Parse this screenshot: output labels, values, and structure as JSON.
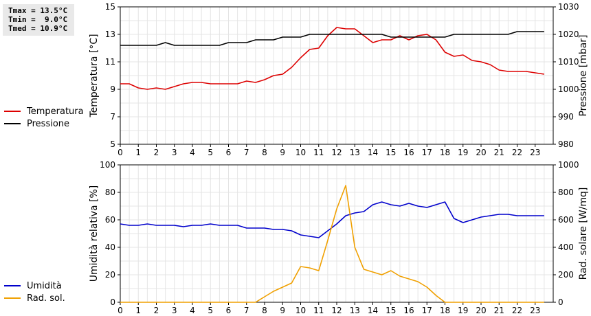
{
  "stats": {
    "tmax": "Tmax = 13.5°C",
    "tmin": "Tmin =  9.0°C",
    "tmed": "Tmed = 10.9°C"
  },
  "chart_data": [
    {
      "type": "line",
      "xlim": [
        0,
        24
      ],
      "xticks": [
        "0",
        "1",
        "2",
        "3",
        "4",
        "5",
        "6",
        "7",
        "8",
        "9",
        "10",
        "11",
        "12",
        "13",
        "14",
        "15",
        "16",
        "17",
        "18",
        "19",
        "20",
        "21",
        "22",
        "23"
      ],
      "ylabel_left": "Temperatura [°C]",
      "ylabel_right": "Pressione [mbar]",
      "ylim_left": [
        5,
        15
      ],
      "ylim_right": [
        980,
        1030
      ],
      "yticks_left": [
        5,
        7,
        9,
        11,
        13,
        15
      ],
      "yticks_right": [
        980,
        990,
        1000,
        1010,
        1020,
        1030
      ],
      "grid": true,
      "legend_position": "left",
      "series": [
        {
          "name": "Temperatura",
          "axis": "left",
          "color": "#dd0000",
          "x": [
            0,
            0.5,
            1,
            1.5,
            2,
            2.5,
            3,
            3.5,
            4,
            4.5,
            5,
            5.5,
            6,
            6.5,
            7,
            7.5,
            8,
            8.5,
            9,
            9.5,
            10,
            10.5,
            11,
            11.5,
            12,
            12.5,
            13,
            13.5,
            14,
            14.5,
            15,
            15.5,
            16,
            16.5,
            17,
            17.5,
            18,
            18.5,
            19,
            19.5,
            20,
            20.5,
            21,
            21.5,
            22,
            22.5,
            23,
            23.5
          ],
          "values": [
            9.4,
            9.4,
            9.1,
            9.0,
            9.1,
            9.0,
            9.2,
            9.4,
            9.5,
            9.5,
            9.4,
            9.4,
            9.4,
            9.4,
            9.6,
            9.5,
            9.7,
            10.0,
            10.1,
            10.6,
            11.3,
            11.9,
            12.0,
            12.9,
            13.5,
            13.4,
            13.4,
            12.9,
            12.4,
            12.6,
            12.6,
            12.9,
            12.6,
            12.9,
            13.0,
            12.6,
            11.7,
            11.4,
            11.5,
            11.1,
            11.0,
            10.8,
            10.4,
            10.3,
            10.3,
            10.3,
            10.2,
            10.1
          ]
        },
        {
          "name": "Pressione",
          "axis": "right",
          "color": "#000000",
          "x": [
            0,
            0.5,
            1,
            1.5,
            2,
            2.5,
            3,
            3.5,
            4,
            4.5,
            5,
            5.5,
            6,
            6.5,
            7,
            7.5,
            8,
            8.5,
            9,
            9.5,
            10,
            10.5,
            11,
            11.5,
            12,
            12.5,
            13,
            13.5,
            14,
            14.5,
            15,
            15.5,
            16,
            16.5,
            17,
            17.5,
            18,
            18.5,
            19,
            19.5,
            20,
            20.5,
            21,
            21.5,
            22,
            22.5,
            23,
            23.5
          ],
          "values": [
            1016,
            1016,
            1016,
            1016,
            1016,
            1017,
            1016,
            1016,
            1016,
            1016,
            1016,
            1016,
            1017,
            1017,
            1017,
            1018,
            1018,
            1018,
            1019,
            1019,
            1019,
            1020,
            1020,
            1020,
            1020,
            1020,
            1020,
            1020,
            1020,
            1020,
            1019,
            1019,
            1019,
            1019,
            1019,
            1019,
            1019,
            1020,
            1020,
            1020,
            1020,
            1020,
            1020,
            1020,
            1021,
            1021,
            1021,
            1021
          ]
        }
      ]
    },
    {
      "type": "line",
      "xlim": [
        0,
        24
      ],
      "xticks": [
        "0",
        "1",
        "2",
        "3",
        "4",
        "5",
        "6",
        "7",
        "8",
        "9",
        "10",
        "11",
        "12",
        "13",
        "14",
        "15",
        "16",
        "17",
        "18",
        "19",
        "20",
        "21",
        "22",
        "23"
      ],
      "ylabel_left": "Umidità relativa [%]",
      "ylabel_right": "Rad. solare [W/mq]",
      "ylim_left": [
        0,
        100
      ],
      "ylim_right": [
        0,
        1000
      ],
      "yticks_left": [
        0,
        20,
        40,
        60,
        80,
        100
      ],
      "yticks_right": [
        0,
        200,
        400,
        600,
        800,
        1000
      ],
      "grid": true,
      "legend_position": "left",
      "series": [
        {
          "name": "Umidità",
          "axis": "left",
          "color": "#0000cc",
          "x": [
            0,
            0.5,
            1,
            1.5,
            2,
            2.5,
            3,
            3.5,
            4,
            4.5,
            5,
            5.5,
            6,
            6.5,
            7,
            7.5,
            8,
            8.5,
            9,
            9.5,
            10,
            10.5,
            11,
            11.5,
            12,
            12.5,
            13,
            13.5,
            14,
            14.5,
            15,
            15.5,
            16,
            16.5,
            17,
            17.5,
            18,
            18.5,
            19,
            19.5,
            20,
            20.5,
            21,
            21.5,
            22,
            22.5,
            23,
            23.5
          ],
          "values": [
            57,
            56,
            56,
            57,
            56,
            56,
            56,
            55,
            56,
            56,
            57,
            56,
            56,
            56,
            54,
            54,
            54,
            53,
            53,
            52,
            49,
            48,
            47,
            52,
            57,
            63,
            65,
            66,
            71,
            73,
            71,
            70,
            72,
            70,
            69,
            71,
            73,
            61,
            58,
            60,
            62,
            63,
            64,
            64,
            63,
            63,
            63,
            63
          ]
        },
        {
          "name": "Rad. sol.",
          "axis": "right",
          "color": "#f0a000",
          "x": [
            0,
            0.5,
            1,
            1.5,
            2,
            2.5,
            3,
            3.5,
            4,
            4.5,
            5,
            5.5,
            6,
            6.5,
            7,
            7.5,
            8,
            8.5,
            9,
            9.5,
            10,
            10.5,
            11,
            11.5,
            12,
            12.5,
            13,
            13.5,
            14,
            14.5,
            15,
            15.5,
            16,
            16.5,
            17,
            17.5,
            18,
            18.5,
            19,
            19.5,
            20,
            20.5,
            21,
            21.5,
            22,
            22.5,
            23,
            23.5
          ],
          "values": [
            0,
            0,
            0,
            0,
            0,
            0,
            0,
            0,
            0,
            0,
            0,
            0,
            0,
            0,
            0,
            0,
            40,
            80,
            110,
            140,
            260,
            250,
            230,
            450,
            680,
            850,
            400,
            240,
            220,
            200,
            230,
            190,
            170,
            150,
            110,
            50,
            0,
            0,
            0,
            0,
            0,
            0,
            0,
            0,
            0,
            0,
            0,
            0
          ]
        }
      ]
    }
  ]
}
